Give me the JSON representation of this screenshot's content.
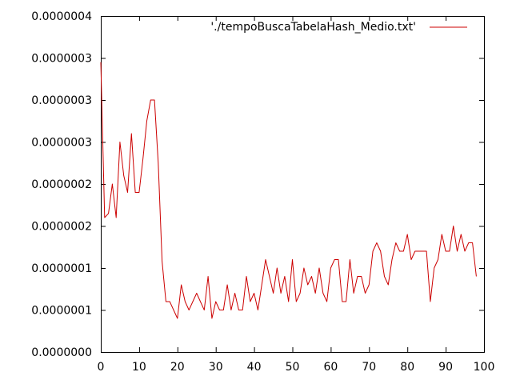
{
  "chart_data": {
    "type": "line",
    "title": "",
    "xlabel": "",
    "ylabel": "",
    "xlim": [
      0,
      100
    ],
    "ylim": [
      0,
      4e-07
    ],
    "xticks": [
      0,
      10,
      20,
      30,
      40,
      50,
      60,
      70,
      80,
      90,
      100
    ],
    "xtick_labels": [
      "0",
      "10",
      "20",
      "30",
      "40",
      "50",
      "60",
      "70",
      "80",
      "90",
      "100"
    ],
    "yticks": [
      0,
      5e-08,
      1e-07,
      1.5e-07,
      2e-07,
      2.5e-07,
      3e-07,
      3.5e-07,
      4e-07
    ],
    "ytick_labels": [
      "0.0000000",
      "0.0000001",
      "0.0000001",
      "0.0000002",
      "0.0000002",
      "0.0000003",
      "0.0000003",
      "0.0000003",
      "0.0000004"
    ],
    "grid": false,
    "legend_position": "top-right",
    "series": [
      {
        "name": "'./tempoBuscaTabelaHash_Medio.txt'",
        "color": "#cc0000",
        "x": [
          0,
          1,
          2,
          3,
          4,
          5,
          6,
          7,
          8,
          9,
          10,
          11,
          12,
          13,
          14,
          15,
          16,
          17,
          18,
          19,
          20,
          21,
          22,
          23,
          24,
          25,
          26,
          27,
          28,
          29,
          30,
          31,
          32,
          33,
          34,
          35,
          36,
          37,
          38,
          39,
          40,
          41,
          42,
          43,
          44,
          45,
          46,
          47,
          48,
          49,
          50,
          51,
          52,
          53,
          54,
          55,
          56,
          57,
          58,
          59,
          60,
          61,
          62,
          63,
          64,
          65,
          66,
          67,
          68,
          69,
          70,
          71,
          72,
          73,
          74,
          75,
          76,
          77,
          78,
          79,
          80,
          81,
          82,
          83,
          84,
          85,
          86,
          87,
          88,
          89,
          90,
          91,
          92,
          93,
          94,
          95,
          96,
          97,
          98
        ],
        "y": [
          3.45e-07,
          1.6e-07,
          1.65e-07,
          2e-07,
          1.6e-07,
          2.5e-07,
          2.1e-07,
          1.9e-07,
          2.6e-07,
          1.9e-07,
          1.9e-07,
          2.3e-07,
          2.75e-07,
          3e-07,
          3e-07,
          2.25e-07,
          1.08e-07,
          6e-08,
          6e-08,
          5e-08,
          4e-08,
          8e-08,
          6e-08,
          5e-08,
          6e-08,
          7e-08,
          6e-08,
          5e-08,
          9e-08,
          4e-08,
          6e-08,
          5e-08,
          5e-08,
          8e-08,
          5e-08,
          7e-08,
          5e-08,
          5e-08,
          9e-08,
          6e-08,
          7e-08,
          5e-08,
          8e-08,
          1.1e-07,
          9e-08,
          7e-08,
          1e-07,
          7e-08,
          9e-08,
          6e-08,
          1.1e-07,
          6e-08,
          7e-08,
          1e-07,
          8e-08,
          9e-08,
          7e-08,
          1e-07,
          7e-08,
          6e-08,
          1e-07,
          1.1e-07,
          1.1e-07,
          6e-08,
          6e-08,
          1.1e-07,
          7e-08,
          9e-08,
          9e-08,
          7e-08,
          8e-08,
          1.2e-07,
          1.3e-07,
          1.2e-07,
          9e-08,
          8e-08,
          1.1e-07,
          1.3e-07,
          1.2e-07,
          1.2e-07,
          1.4e-07,
          1.1e-07,
          1.2e-07,
          1.2e-07,
          1.2e-07,
          1.2e-07,
          6e-08,
          1e-07,
          1.1e-07,
          1.4e-07,
          1.2e-07,
          1.2e-07,
          1.5e-07,
          1.2e-07,
          1.4e-07,
          1.2e-07,
          1.3e-07,
          1.3e-07,
          9e-08
        ]
      }
    ]
  }
}
